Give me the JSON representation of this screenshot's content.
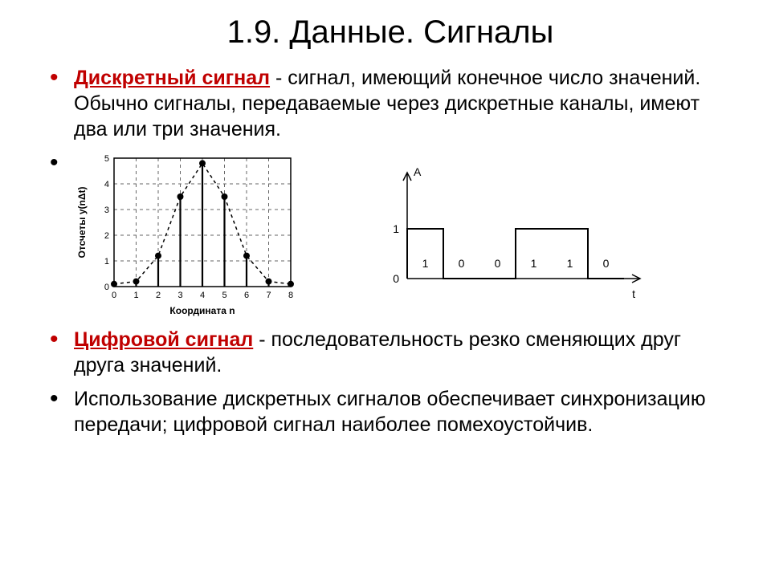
{
  "title": "1.9. Данные. Сигналы",
  "p1_term": "Дискретный сигнал",
  "p1_rest": " - сигнал, имеющий конечное число значений. Обычно сигналы, передаваемые через дискретные каналы, имеют два или три значения.",
  "p3_term": "Цифровой сигнал",
  "p3_rest": " - последовательность резко сменяющих друг друга значений.",
  "p4": "Использование дискретных сигналов обеспечивает синхронизацию передачи; цифровой сигнал наиболее помехоустойчив.",
  "chart1": {
    "type": "stem",
    "xlabel": "Координата n",
    "ylabel": "Отсчеты  y(nΔt)",
    "xlim": [
      0,
      8
    ],
    "ylim": [
      0,
      5
    ],
    "xticks": [
      0,
      1,
      2,
      3,
      4,
      5,
      6,
      7,
      8
    ],
    "yticks": [
      0,
      1,
      2,
      3,
      4,
      5
    ],
    "points": [
      {
        "x": 0,
        "y": 0.1
      },
      {
        "x": 1,
        "y": 0.2
      },
      {
        "x": 2,
        "y": 1.2
      },
      {
        "x": 3,
        "y": 3.5
      },
      {
        "x": 4,
        "y": 4.8
      },
      {
        "x": 5,
        "y": 3.5
      },
      {
        "x": 6,
        "y": 1.2
      },
      {
        "x": 7,
        "y": 0.2
      },
      {
        "x": 8,
        "y": 0.1
      }
    ],
    "colors": {
      "axis": "#000000",
      "grid": "#666666",
      "curve": "#000000",
      "text": "#000000",
      "bg": "#ffffff"
    },
    "label_fontsize": 12,
    "tick_fontsize": 11
  },
  "chart2": {
    "type": "digital",
    "ylabel": "A",
    "xlabel": "t",
    "yticks": [
      0,
      1
    ],
    "bits": [
      "1",
      "0",
      "0",
      "1",
      "1",
      "0"
    ],
    "colors": {
      "axis": "#000000",
      "line": "#000000",
      "text": "#000000",
      "bg": "#ffffff"
    },
    "label_fontsize": 14,
    "bit_fontsize": 14
  }
}
